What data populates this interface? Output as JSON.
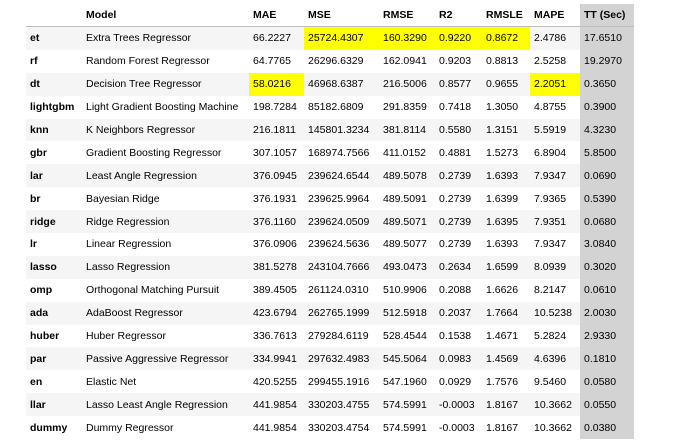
{
  "columns": [
    "",
    "Model",
    "MAE",
    "MSE",
    "RMSE",
    "R2",
    "RMSLE",
    "MAPE",
    "TT (Sec)"
  ],
  "highlight_color": "#ffff00",
  "tt_column_color": "#d3d3d3",
  "rows": [
    [
      "et",
      "Extra Trees Regressor",
      "66.2227",
      "25724.4307",
      "160.3290",
      "0.9220",
      "0.8672",
      "2.4786",
      "17.6510"
    ],
    [
      "rf",
      "Random Forest Regressor",
      "64.7765",
      "26296.6329",
      "162.0941",
      "0.9203",
      "0.8813",
      "2.5258",
      "19.2970"
    ],
    [
      "dt",
      "Decision Tree Regressor",
      "58.0216",
      "46968.6387",
      "216.5006",
      "0.8577",
      "0.9655",
      "2.2051",
      "0.3650"
    ],
    [
      "lightgbm",
      "Light Gradient Boosting Machine",
      "198.7284",
      "85182.6809",
      "291.8359",
      "0.7418",
      "1.3050",
      "4.8755",
      "0.3900"
    ],
    [
      "knn",
      "K Neighbors Regressor",
      "216.1811",
      "145801.3234",
      "381.8114",
      "0.5580",
      "1.3151",
      "5.5919",
      "4.3230"
    ],
    [
      "gbr",
      "Gradient Boosting Regressor",
      "307.1057",
      "168974.7566",
      "411.0152",
      "0.4881",
      "1.5273",
      "6.8904",
      "5.8500"
    ],
    [
      "lar",
      "Least Angle Regression",
      "376.0945",
      "239624.6544",
      "489.5078",
      "0.2739",
      "1.6393",
      "7.9347",
      "0.0690"
    ],
    [
      "br",
      "Bayesian Ridge",
      "376.1931",
      "239625.9964",
      "489.5091",
      "0.2739",
      "1.6399",
      "7.9365",
      "0.5390"
    ],
    [
      "ridge",
      "Ridge Regression",
      "376.1160",
      "239624.0509",
      "489.5071",
      "0.2739",
      "1.6395",
      "7.9351",
      "0.0680"
    ],
    [
      "lr",
      "Linear Regression",
      "376.0906",
      "239624.5636",
      "489.5077",
      "0.2739",
      "1.6393",
      "7.9347",
      "3.0840"
    ],
    [
      "lasso",
      "Lasso Regression",
      "381.5278",
      "243104.7666",
      "493.0473",
      "0.2634",
      "1.6599",
      "8.0939",
      "0.3020"
    ],
    [
      "omp",
      "Orthogonal Matching Pursuit",
      "389.4505",
      "261124.0310",
      "510.9906",
      "0.2088",
      "1.6626",
      "8.2147",
      "0.0610"
    ],
    [
      "ada",
      "AdaBoost Regressor",
      "423.6794",
      "262765.1999",
      "512.5918",
      "0.2037",
      "1.7664",
      "10.5238",
      "2.0030"
    ],
    [
      "huber",
      "Huber Regressor",
      "336.7613",
      "279284.6119",
      "528.4544",
      "0.1538",
      "1.4671",
      "5.2824",
      "2.9330"
    ],
    [
      "par",
      "Passive Aggressive Regressor",
      "334.9941",
      "297632.4983",
      "545.5064",
      "0.0983",
      "1.4569",
      "4.6396",
      "0.1810"
    ],
    [
      "en",
      "Elastic Net",
      "420.5255",
      "299455.1916",
      "547.1960",
      "0.0929",
      "1.7576",
      "9.5460",
      "0.0580"
    ],
    [
      "llar",
      "Lasso Least Angle Regression",
      "441.9854",
      "330203.4755",
      "574.5991",
      "-0.0003",
      "1.8167",
      "10.3662",
      "0.0550"
    ],
    [
      "dummy",
      "Dummy Regressor",
      "441.9854",
      "330203.4754",
      "574.5991",
      "-0.0003",
      "1.8167",
      "10.3662",
      "0.0380"
    ]
  ],
  "highlights": [
    [
      0,
      3
    ],
    [
      0,
      4
    ],
    [
      0,
      5
    ],
    [
      0,
      6
    ],
    [
      2,
      2
    ],
    [
      2,
      7
    ]
  ]
}
